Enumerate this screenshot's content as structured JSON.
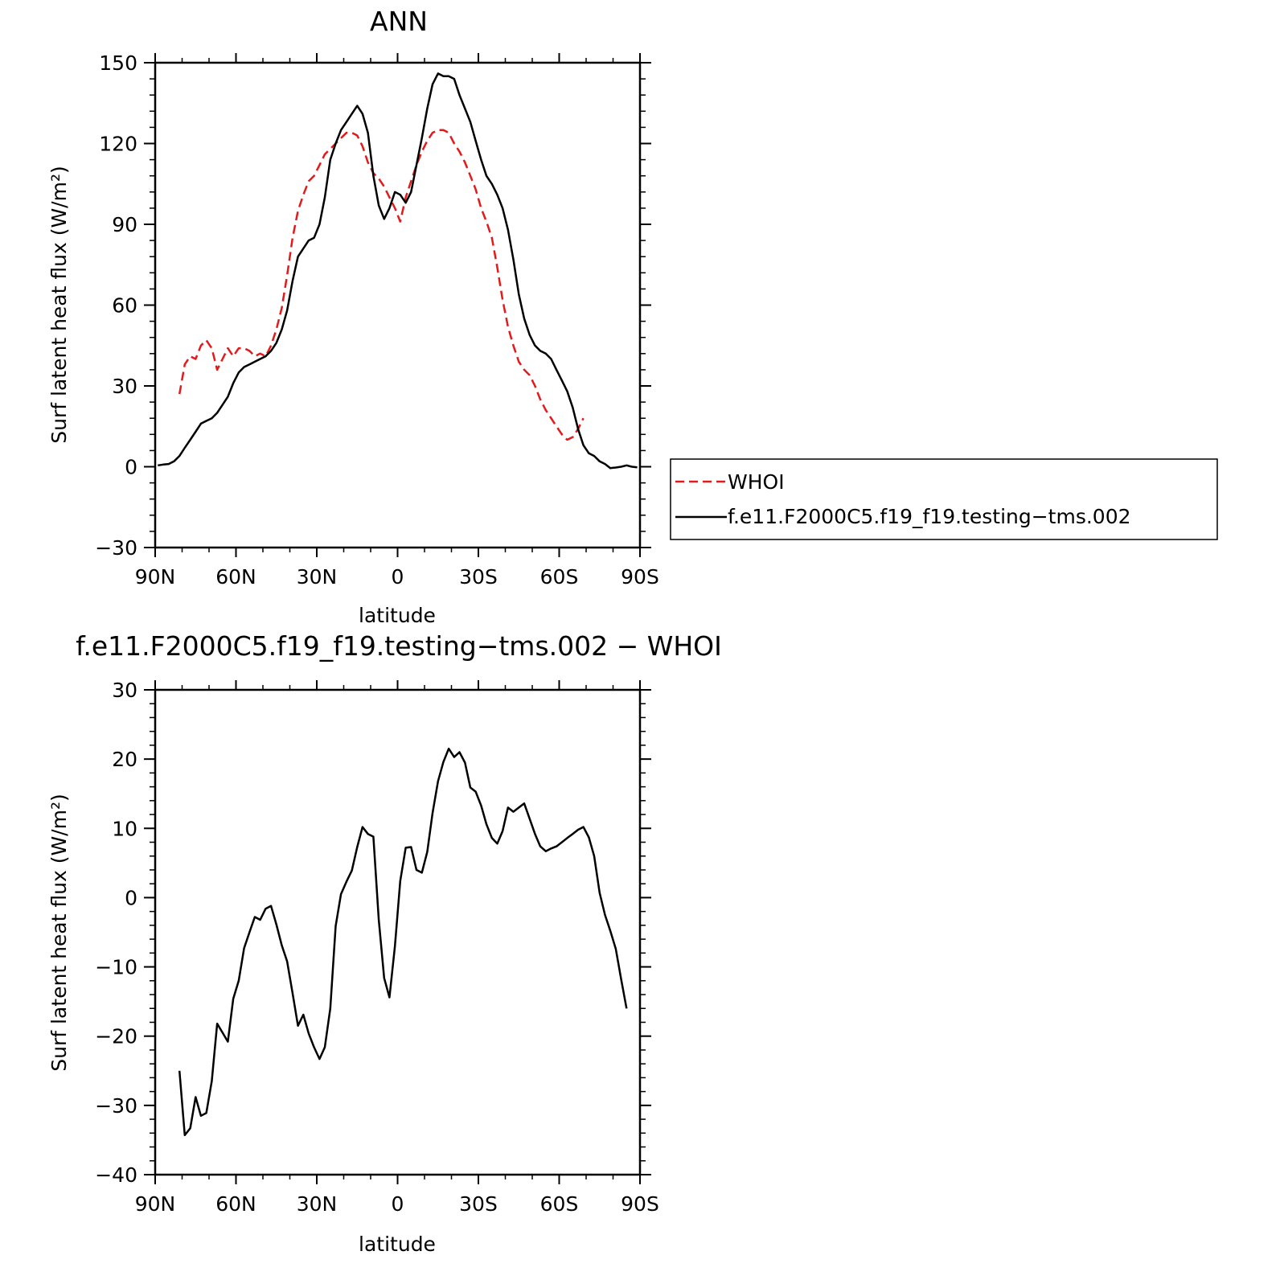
{
  "chart_data": [
    {
      "type": "line",
      "title": "ANN",
      "xlabel": "latitude",
      "ylabel": "Surf latent heat flux (W/m²)",
      "xlim": [
        90,
        -90
      ],
      "ylim": [
        -30,
        150
      ],
      "x_ticks": [
        {
          "value": 90,
          "label": "90N"
        },
        {
          "value": 60,
          "label": "60N"
        },
        {
          "value": 30,
          "label": "30N"
        },
        {
          "value": 0,
          "label": "0"
        },
        {
          "value": -30,
          "label": "30S"
        },
        {
          "value": -60,
          "label": "60S"
        },
        {
          "value": -90,
          "label": "90S"
        }
      ],
      "y_ticks": [
        {
          "value": 150,
          "label": "150"
        },
        {
          "value": 120,
          "label": "120"
        },
        {
          "value": 90,
          "label": "90"
        },
        {
          "value": 60,
          "label": "60"
        },
        {
          "value": 30,
          "label": "30"
        },
        {
          "value": 0,
          "label": "0"
        },
        {
          "value": -30,
          "label": "−30"
        }
      ],
      "legend": {
        "placement": "right",
        "entries": [
          {
            "name": "WHOI",
            "color": "#e31a1c",
            "dash": "dashed"
          },
          {
            "name": "f.e11.F2000C5.f19_f19.testing−tms.002",
            "color": "#000000",
            "dash": "solid"
          }
        ]
      },
      "series": [
        {
          "name": "WHOI",
          "color": "#e31a1c",
          "style": "dashed",
          "points": [
            [
              81,
              27
            ],
            [
              79,
              38
            ],
            [
              77,
              41
            ],
            [
              75,
              40
            ],
            [
              73,
              45
            ],
            [
              71,
              47
            ],
            [
              69,
              44
            ],
            [
              67,
              36
            ],
            [
              65,
              40
            ],
            [
              63,
              44
            ],
            [
              61,
              41
            ],
            [
              59,
              44
            ],
            [
              57,
              44
            ],
            [
              55,
              43
            ],
            [
              53,
              41
            ],
            [
              51,
              42
            ],
            [
              49,
              41
            ],
            [
              47,
              45
            ],
            [
              45,
              51
            ],
            [
              43,
              59
            ],
            [
              41,
              71
            ],
            [
              39,
              85
            ],
            [
              37,
              95
            ],
            [
              35,
              101
            ],
            [
              33,
              106
            ],
            [
              31,
              108
            ],
            [
              29,
              112
            ],
            [
              27,
              116
            ],
            [
              25,
              118
            ],
            [
              23,
              120
            ],
            [
              21,
              122
            ],
            [
              19,
              124
            ],
            [
              17,
              124
            ],
            [
              15,
              123
            ],
            [
              13,
              119
            ],
            [
              11,
              113
            ],
            [
              9,
              109
            ],
            [
              7,
              107
            ],
            [
              5,
              104
            ],
            [
              3,
              100
            ],
            [
              1,
              96
            ],
            [
              -1,
              91
            ],
            [
              -3,
              100
            ],
            [
              -5,
              106
            ],
            [
              -7,
              112
            ],
            [
              -9,
              117
            ],
            [
              -11,
              121
            ],
            [
              -13,
              124
            ],
            [
              -15,
              125
            ],
            [
              -17,
              125
            ],
            [
              -19,
              124
            ],
            [
              -21,
              120
            ],
            [
              -23,
              117
            ],
            [
              -25,
              113
            ],
            [
              -27,
              108
            ],
            [
              -29,
              103
            ],
            [
              -31,
              96
            ],
            [
              -33,
              91
            ],
            [
              -35,
              85
            ],
            [
              -37,
              74
            ],
            [
              -39,
              62
            ],
            [
              -41,
              52
            ],
            [
              -43,
              45
            ],
            [
              -45,
              39
            ],
            [
              -47,
              36
            ],
            [
              -49,
              34
            ],
            [
              -51,
              30
            ],
            [
              -53,
              25
            ],
            [
              -55,
              21
            ],
            [
              -57,
              18
            ],
            [
              -59,
              15
            ],
            [
              -61,
              12
            ],
            [
              -63,
              10
            ],
            [
              -65,
              11
            ],
            [
              -67,
              14
            ],
            [
              -69,
              18
            ]
          ]
        },
        {
          "name": "f.e11.F2000C5.f19_f19.testing−tms.002",
          "color": "#000000",
          "style": "solid",
          "points": [
            [
              89,
              0.5
            ],
            [
              87,
              0.8
            ],
            [
              85,
              1
            ],
            [
              83,
              2
            ],
            [
              81,
              4
            ],
            [
              79,
              7
            ],
            [
              77,
              10
            ],
            [
              75,
              13
            ],
            [
              73,
              16
            ],
            [
              71,
              17
            ],
            [
              69,
              18
            ],
            [
              67,
              20
            ],
            [
              65,
              23
            ],
            [
              63,
              26
            ],
            [
              61,
              31
            ],
            [
              59,
              35
            ],
            [
              57,
              37
            ],
            [
              55,
              38
            ],
            [
              53,
              39
            ],
            [
              51,
              40
            ],
            [
              49,
              41
            ],
            [
              47,
              43
            ],
            [
              45,
              46
            ],
            [
              43,
              51
            ],
            [
              41,
              58
            ],
            [
              39,
              69
            ],
            [
              37,
              78
            ],
            [
              35,
              81
            ],
            [
              33,
              84
            ],
            [
              31,
              85
            ],
            [
              29,
              90
            ],
            [
              27,
              100
            ],
            [
              25,
              114
            ],
            [
              23,
              120
            ],
            [
              21,
              125
            ],
            [
              19,
              128
            ],
            [
              17,
              131
            ],
            [
              15,
              134
            ],
            [
              13,
              131
            ],
            [
              11,
              124
            ],
            [
              9,
              108
            ],
            [
              7,
              97
            ],
            [
              5,
              92
            ],
            [
              3,
              96
            ],
            [
              1,
              102
            ],
            [
              -1,
              101
            ],
            [
              -3,
              98
            ],
            [
              -5,
              102
            ],
            [
              -7,
              112
            ],
            [
              -9,
              122
            ],
            [
              -11,
              133
            ],
            [
              -13,
              142
            ],
            [
              -15,
              146
            ],
            [
              -17,
              145
            ],
            [
              -19,
              145
            ],
            [
              -21,
              144
            ],
            [
              -23,
              138
            ],
            [
              -25,
              133
            ],
            [
              -27,
              128
            ],
            [
              -29,
              121
            ],
            [
              -31,
              114
            ],
            [
              -33,
              108
            ],
            [
              -35,
              105
            ],
            [
              -37,
              101
            ],
            [
              -39,
              96
            ],
            [
              -41,
              88
            ],
            [
              -43,
              77
            ],
            [
              -45,
              64
            ],
            [
              -47,
              55
            ],
            [
              -49,
              49
            ],
            [
              -51,
              45
            ],
            [
              -53,
              43
            ],
            [
              -55,
              42
            ],
            [
              -57,
              40
            ],
            [
              -59,
              36
            ],
            [
              -61,
              32
            ],
            [
              -63,
              28
            ],
            [
              -65,
              22
            ],
            [
              -67,
              14
            ],
            [
              -69,
              8
            ],
            [
              -71,
              5
            ],
            [
              -73,
              4
            ],
            [
              -75,
              2
            ],
            [
              -77,
              1
            ],
            [
              -79,
              -0.5
            ],
            [
              -81,
              -0.3
            ],
            [
              -83,
              0
            ],
            [
              -85,
              0.5
            ],
            [
              -87,
              0
            ],
            [
              -89,
              -0.2
            ]
          ]
        }
      ]
    },
    {
      "type": "line",
      "title": "f.e11.F2000C5.f19_f19.testing−tms.002 − WHOI",
      "xlabel": "latitude",
      "ylabel": "Surf latent heat flux (W/m²)",
      "xlim": [
        90,
        -90
      ],
      "ylim": [
        -40,
        30
      ],
      "x_ticks": [
        {
          "value": 90,
          "label": "90N"
        },
        {
          "value": 60,
          "label": "60N"
        },
        {
          "value": 30,
          "label": "30N"
        },
        {
          "value": 0,
          "label": "0"
        },
        {
          "value": -30,
          "label": "30S"
        },
        {
          "value": -60,
          "label": "60S"
        },
        {
          "value": -90,
          "label": "90S"
        }
      ],
      "y_ticks": [
        {
          "value": 30,
          "label": "30"
        },
        {
          "value": 20,
          "label": "20"
        },
        {
          "value": 10,
          "label": "10"
        },
        {
          "value": 0,
          "label": "0"
        },
        {
          "value": -10,
          "label": "−10"
        },
        {
          "value": -20,
          "label": "−20"
        },
        {
          "value": -30,
          "label": "−30"
        },
        {
          "value": -40,
          "label": "−40"
        }
      ],
      "series": [
        {
          "color": "#000000",
          "style": "solid",
          "points": [
            [
              81,
              -25
            ],
            [
              79,
              -34.3
            ],
            [
              77,
              -33.3
            ],
            [
              75,
              -28.8
            ],
            [
              73,
              -31.5
            ],
            [
              71,
              -31.1
            ],
            [
              69,
              -26.5
            ],
            [
              67,
              -18.2
            ],
            [
              65,
              -19.5
            ],
            [
              63,
              -20.8
            ],
            [
              61,
              -14.6
            ],
            [
              59,
              -12
            ],
            [
              57,
              -7.3
            ],
            [
              55,
              -5
            ],
            [
              53,
              -2.8
            ],
            [
              51,
              -3.2
            ],
            [
              49,
              -1.6
            ],
            [
              47,
              -1.2
            ],
            [
              45,
              -3.9
            ],
            [
              43,
              -6.9
            ],
            [
              41,
              -9.2
            ],
            [
              39,
              -13.8
            ],
            [
              37,
              -18.5
            ],
            [
              35,
              -16.9
            ],
            [
              33,
              -19.6
            ],
            [
              31,
              -21.6
            ],
            [
              29,
              -23.3
            ],
            [
              27,
              -21.6
            ],
            [
              25,
              -16
            ],
            [
              23,
              -4.1
            ],
            [
              21,
              0.5
            ],
            [
              19,
              2.3
            ],
            [
              17,
              3.9
            ],
            [
              15,
              7.3
            ],
            [
              13,
              10.2
            ],
            [
              11,
              9.2
            ],
            [
              9,
              8.8
            ],
            [
              7,
              -3.2
            ],
            [
              5,
              -11.6
            ],
            [
              3,
              -14.4
            ],
            [
              1,
              -7
            ],
            [
              -1,
              2.4
            ],
            [
              -3,
              7.2
            ],
            [
              -5,
              7.3
            ],
            [
              -7,
              4
            ],
            [
              -9,
              3.6
            ],
            [
              -11,
              6.6
            ],
            [
              -13,
              12.2
            ],
            [
              -15,
              16.8
            ],
            [
              -17,
              19.6
            ],
            [
              -19,
              21.5
            ],
            [
              -21,
              20.3
            ],
            [
              -23,
              21
            ],
            [
              -25,
              19.5
            ],
            [
              -27,
              15.9
            ],
            [
              -29,
              15.3
            ],
            [
              -31,
              13.3
            ],
            [
              -33,
              10.6
            ],
            [
              -35,
              8.6
            ],
            [
              -37,
              7.8
            ],
            [
              -39,
              9.6
            ],
            [
              -41,
              13
            ],
            [
              -43,
              12.4
            ],
            [
              -45,
              13
            ],
            [
              -47,
              13.6
            ],
            [
              -49,
              11.4
            ],
            [
              -51,
              9.2
            ],
            [
              -53,
              7.4
            ],
            [
              -55,
              6.7
            ],
            [
              -57,
              7.1
            ],
            [
              -59,
              7.4
            ],
            [
              -61,
              8
            ],
            [
              -63,
              8.6
            ],
            [
              -65,
              9.2
            ],
            [
              -67,
              9.8
            ],
            [
              -69,
              10.2
            ],
            [
              -71,
              8.7
            ],
            [
              -73,
              6
            ],
            [
              -75,
              0.7
            ],
            [
              -77,
              -2.5
            ],
            [
              -79,
              -4.8
            ],
            [
              -81,
              -7.4
            ],
            [
              -83,
              -11.8
            ],
            [
              -85,
              -16
            ]
          ]
        }
      ]
    }
  ]
}
